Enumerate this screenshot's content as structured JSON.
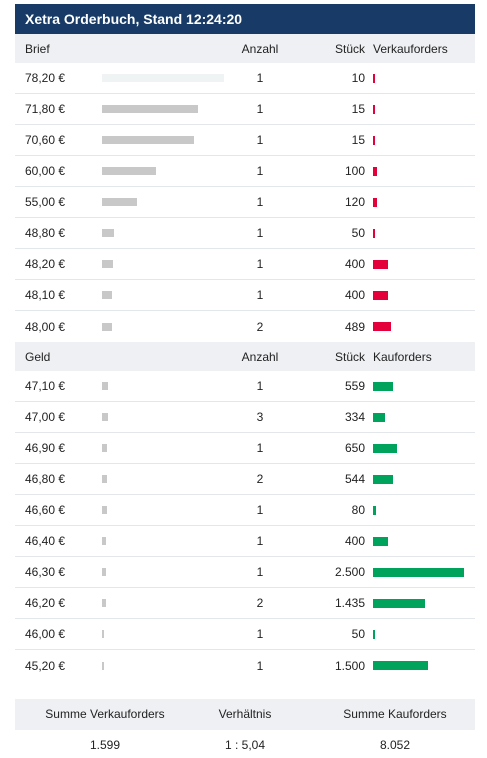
{
  "title": "Xetra Orderbuch, Stand 12:24:20",
  "ask": {
    "header": {
      "price": "Brief",
      "count": "Anzahl",
      "qty": "Stück",
      "orders": "Verkauforders"
    },
    "rows": [
      {
        "price": "78,20 €",
        "count": "1",
        "qty": "10",
        "price_bar": 1.0,
        "bar_color": "#f0f3f3",
        "volume": 10
      },
      {
        "price": "71,80 €",
        "count": "1",
        "qty": "15",
        "price_bar": 0.79,
        "bar_color": "#c8c8c8",
        "volume": 15
      },
      {
        "price": "70,60 €",
        "count": "1",
        "qty": "15",
        "price_bar": 0.75,
        "bar_color": "#c8c8c8",
        "volume": 15
      },
      {
        "price": "60,00 €",
        "count": "1",
        "qty": "100",
        "price_bar": 0.44,
        "bar_color": "#c8c8c8",
        "volume": 100
      },
      {
        "price": "55,00 €",
        "count": "1",
        "qty": "120",
        "price_bar": 0.29,
        "bar_color": "#c8c8c8",
        "volume": 120
      },
      {
        "price": "48,80 €",
        "count": "1",
        "qty": "50",
        "price_bar": 0.1,
        "bar_color": "#c8c8c8",
        "volume": 50
      },
      {
        "price": "48,20 €",
        "count": "1",
        "qty": "400",
        "price_bar": 0.09,
        "bar_color": "#c8c8c8",
        "volume": 400
      },
      {
        "price": "48,10 €",
        "count": "1",
        "qty": "400",
        "price_bar": 0.08,
        "bar_color": "#c8c8c8",
        "volume": 400
      },
      {
        "price": "48,00 €",
        "count": "2",
        "qty": "489",
        "price_bar": 0.08,
        "bar_color": "#c8c8c8",
        "volume": 489
      }
    ]
  },
  "bid": {
    "header": {
      "price": "Geld",
      "count": "Anzahl",
      "qty": "Stück",
      "orders": "Kauforders"
    },
    "rows": [
      {
        "price": "47,10 €",
        "count": "1",
        "qty": "559",
        "price_bar": 0.05,
        "bar_color": "#c8c8c8",
        "volume": 559
      },
      {
        "price": "47,00 €",
        "count": "3",
        "qty": "334",
        "price_bar": 0.05,
        "bar_color": "#c8c8c8",
        "volume": 334
      },
      {
        "price": "46,90 €",
        "count": "1",
        "qty": "650",
        "price_bar": 0.04,
        "bar_color": "#c8c8c8",
        "volume": 650
      },
      {
        "price": "46,80 €",
        "count": "2",
        "qty": "544",
        "price_bar": 0.04,
        "bar_color": "#c8c8c8",
        "volume": 544
      },
      {
        "price": "46,60 €",
        "count": "1",
        "qty": "80",
        "price_bar": 0.04,
        "bar_color": "#c8c8c8",
        "volume": 80
      },
      {
        "price": "46,40 €",
        "count": "1",
        "qty": "400",
        "price_bar": 0.03,
        "bar_color": "#c8c8c8",
        "volume": 400
      },
      {
        "price": "46,30 €",
        "count": "1",
        "qty": "2.500",
        "price_bar": 0.03,
        "bar_color": "#c8c8c8",
        "volume": 2500
      },
      {
        "price": "46,20 €",
        "count": "2",
        "qty": "1.435",
        "price_bar": 0.03,
        "bar_color": "#c8c8c8",
        "volume": 1435
      },
      {
        "price": "46,00 €",
        "count": "1",
        "qty": "50",
        "price_bar": 0.02,
        "bar_color": "#c8c8c8",
        "volume": 50
      },
      {
        "price": "45,20 €",
        "count": "1",
        "qty": "1.500",
        "price_bar": 0.01,
        "bar_color": "#c8c8c8",
        "volume": 1500
      }
    ]
  },
  "volume_max": 2500,
  "colors": {
    "sell": "#e4003a",
    "buy": "#00a35c",
    "header_bg": "#173b66"
  },
  "summary": {
    "labels": {
      "sell": "Summe Verkauforders",
      "ratio": "Verhältnis",
      "buy": "Summe Kauforders"
    },
    "values": {
      "sell": "1.599",
      "ratio": "1 : 5,04",
      "buy": "8.052"
    }
  }
}
